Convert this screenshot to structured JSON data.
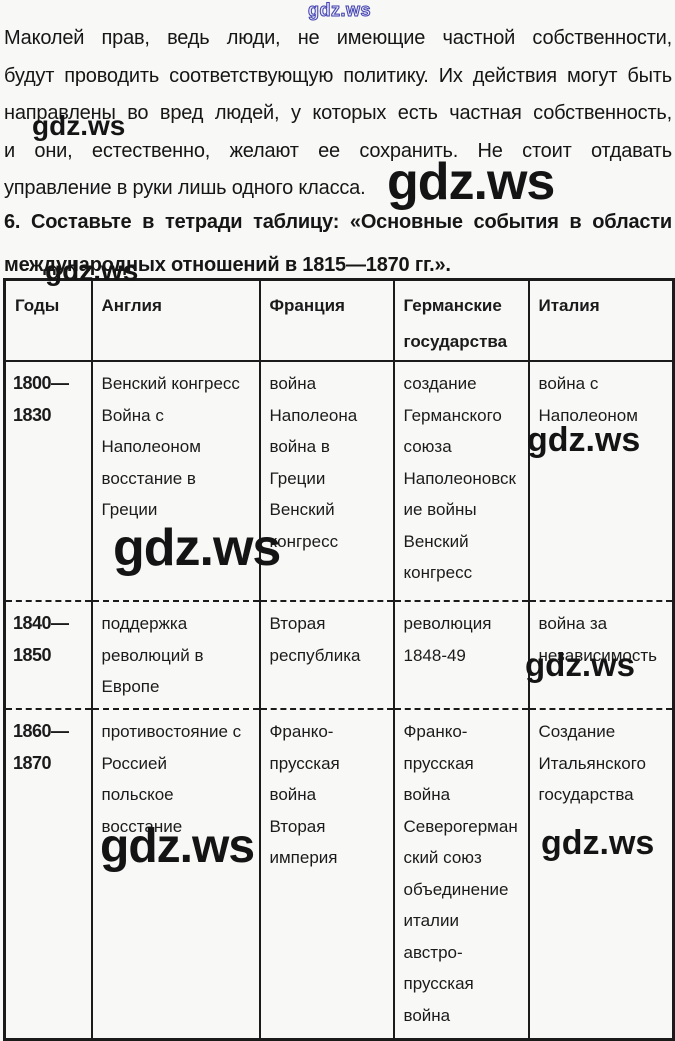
{
  "watermark": {
    "text": "gdz.ws"
  },
  "paragraph": {
    "lines": [
      "Маколей прав, ведь люди, не имеющие частной собственности,",
      "будут проводить соответствующую политику. Их действия могут быть",
      "направлены во вред людей, у которых есть частная собственность,",
      "и они, естественно, желают ее сохранить. Не стоит отдавать",
      "управление в руки лишь одного класса."
    ]
  },
  "task": {
    "line1": "6. Составьте в тетради таблицу: «Основные события в области",
    "line2": "международных отношений в 1815—1870 гг.»."
  },
  "table": {
    "headers": [
      "Годы",
      "Англия",
      "Франция",
      "Германские\nгосударства",
      "Италия"
    ],
    "rows": [
      {
        "years": "1800—\n1830",
        "england": "Венский конгресс\nВойна с\nНаполеоном\nвосстание в\nГреции",
        "france": "война\nНаполеона\nвойна в\nГреции\nВенский\nконгресс",
        "germany": "создание\nГерманского\nсоюза\nНаполеоновск\nие войны\nВенский\nконгресс",
        "italy": "война с\nНаполеоном"
      },
      {
        "years": "1840—\n1850",
        "england": "поддержка\nреволюций в\nЕвропе",
        "france": "Вторая\nреспублика",
        "germany": "революция\n1848-49",
        "italy": "война за\nнезависимость"
      },
      {
        "years": "1860—\n1870",
        "england": "противостояние с\nРоссией\nпольское\nвосстание",
        "france": "Франко-\nпрусская\nвойна\nВторая\nимперия",
        "germany": "Франко-\nпрусская\nвойна\nСеверогерман\nский союз\nобъединение\nиталии\nавстро-\nпрусская\nвойна",
        "italy": "Создание\nИтальянского\nгосударства"
      }
    ]
  }
}
